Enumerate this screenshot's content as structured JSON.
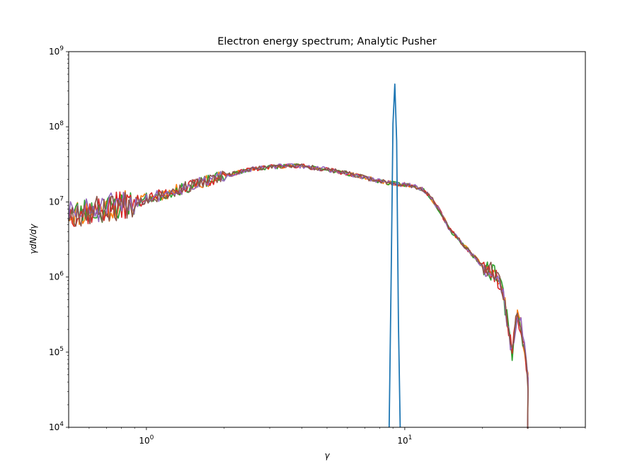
{
  "chart_data": {
    "type": "line",
    "title": "Electron energy spectrum; Analytic Pusher",
    "xlabel": "γ",
    "ylabel": "γdN/dγ",
    "xscale": "log",
    "yscale": "log",
    "xlim": [
      0.5,
      50
    ],
    "ylim": [
      10000,
      1000000000
    ],
    "grid": false,
    "x_tick_labels": [
      {
        "value": 1,
        "base": "10",
        "exp": "0"
      },
      {
        "value": 10,
        "base": "10",
        "exp": "1"
      }
    ],
    "y_tick_labels": [
      {
        "value": 10000,
        "base": "10",
        "exp": "4"
      },
      {
        "value": 100000,
        "base": "10",
        "exp": "5"
      },
      {
        "value": 1000000,
        "base": "10",
        "exp": "6"
      },
      {
        "value": 10000000,
        "base": "10",
        "exp": "7"
      },
      {
        "value": 100000000,
        "base": "10",
        "exp": "8"
      },
      {
        "value": 1000000000,
        "base": "10",
        "exp": "9"
      }
    ],
    "series_colors": [
      "#1f77b4",
      "#ff7f0e",
      "#2ca02c",
      "#d62728",
      "#9467bd",
      "#8c564b"
    ],
    "initial_peak": {
      "x": [
        8.7,
        8.85,
        9.0,
        9.15,
        9.3,
        9.45,
        9.6
      ],
      "y": [
        10000,
        800000,
        110000000,
        370000000,
        65000000,
        250000,
        10000
      ]
    },
    "envelope": {
      "x": [
        0.5,
        0.6,
        0.7,
        0.8,
        1.0,
        1.2,
        1.5,
        2.0,
        2.5,
        3.0,
        3.5,
        4.0,
        5.0,
        6.0,
        7.0,
        8.0,
        9.0,
        10.0,
        11.0,
        12.0,
        13.0,
        14.0,
        15.0,
        16.0,
        17.0,
        18.0,
        19.0,
        20.0,
        21.0,
        22.0,
        23.0,
        24.0,
        25.0,
        26.0,
        27.0,
        28.0,
        29.0,
        30.0
      ],
      "y": [
        7000000,
        7500000,
        8200000,
        9000000,
        11000000,
        13000000,
        16500000,
        22000000,
        27000000,
        29000000,
        30500000,
        30000000,
        27000000,
        24000000,
        21000000,
        19000000,
        17500000,
        17000000,
        16000000,
        14000000,
        10000000,
        6500000,
        4200000,
        3300000,
        2600000,
        2100000,
        1700000,
        1400000,
        1250000,
        1150000,
        900000,
        600000,
        250000,
        90000,
        300000,
        250000,
        120000,
        40000
      ]
    },
    "series": [
      {
        "seed": 11,
        "noise": 0.55
      },
      {
        "seed": 23,
        "noise": 0.55
      },
      {
        "seed": 37,
        "noise": 0.55
      },
      {
        "seed": 51,
        "noise": 0.55
      },
      {
        "seed": 67,
        "noise": 0.55
      }
    ]
  }
}
